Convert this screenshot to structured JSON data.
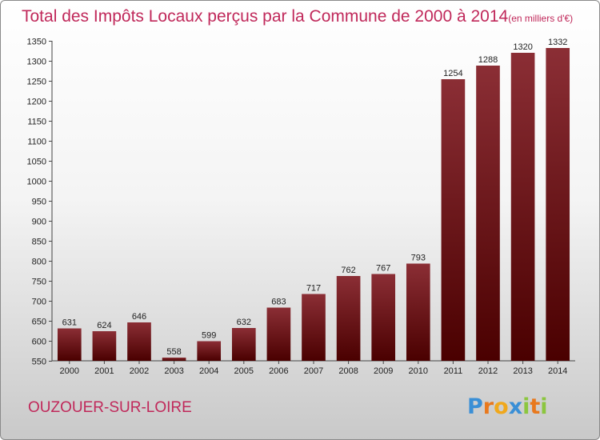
{
  "chart_data": {
    "type": "bar",
    "title": "Total des Impôts Locaux perçus par la Commune de 2000 à 2014",
    "unit_label": "(en milliers d'€)",
    "categories": [
      "2000",
      "2001",
      "2002",
      "2003",
      "2004",
      "2005",
      "2006",
      "2007",
      "2008",
      "2009",
      "2010",
      "2011",
      "2012",
      "2013",
      "2014"
    ],
    "values": [
      631,
      624,
      646,
      558,
      599,
      632,
      683,
      717,
      762,
      767,
      793,
      1254,
      1288,
      1320,
      1332
    ],
    "ylim": [
      550,
      1350
    ],
    "yticks": [
      550,
      600,
      650,
      700,
      750,
      800,
      850,
      900,
      950,
      1000,
      1050,
      1100,
      1150,
      1200,
      1250,
      1300,
      1350
    ],
    "xlabel": "",
    "ylabel": "",
    "grid": false,
    "legend": "none",
    "bar_color_top": "#8b2e35",
    "bar_color_bottom": "#4a0000"
  },
  "commune": "OUZOUER-SUR-LOIRE",
  "logo": {
    "letters": [
      "P",
      "r",
      "o",
      "x",
      "i",
      "t",
      "i"
    ],
    "colors": [
      "#3a8fd6",
      "#e8791e",
      "#f0a81c",
      "#3a8fd6",
      "#8cc63f",
      "#e8791e",
      "#8cc63f"
    ]
  }
}
